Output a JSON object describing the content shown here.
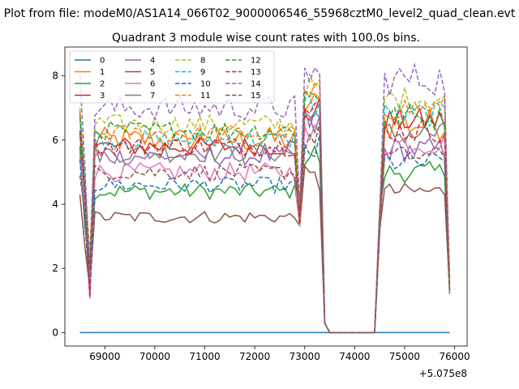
{
  "suptitle": "Plot from file: modeM0/AS1A14_066T02_9000006546_55968cztM0_level2_quad_clean.evt",
  "chart_data": {
    "type": "line",
    "title": "Quadrant 3 module wise count rates with 100.0s bins.",
    "xlabel": "",
    "ylabel": "",
    "x_offset_label": "+5.075e8",
    "xlim": [
      68200,
      76250
    ],
    "ylim": [
      -0.42,
      8.9
    ],
    "xticks": [
      69000,
      70000,
      71000,
      72000,
      73000,
      74000,
      75000,
      76000
    ],
    "yticks": [
      0,
      2,
      4,
      6,
      8
    ],
    "grid": false,
    "legend": {
      "position": "top-left",
      "ncol": 4
    },
    "segments": [
      {
        "x_start": 68500,
        "x_end": 73400
      },
      {
        "x_start": 73500,
        "x_end": 74400
      },
      {
        "x_start": 74500,
        "x_end": 75900
      }
    ],
    "series": [
      {
        "name": "0",
        "color": "#1f77b4",
        "style": "solid",
        "base": 0.0,
        "edge": 0.0,
        "amp": 0.0,
        "seg2": 0.0
      },
      {
        "name": "1",
        "color": "#ff7f0e",
        "style": "solid",
        "base": 6.0,
        "edge": 6.9,
        "amp": 0.4,
        "seg2": 6.5
      },
      {
        "name": "2",
        "color": "#2ca02c",
        "style": "solid",
        "base": 4.4,
        "edge": 5.8,
        "amp": 0.25,
        "seg2": 5.0
      },
      {
        "name": "3",
        "color": "#d62728",
        "style": "solid",
        "base": 5.8,
        "edge": 6.8,
        "amp": 0.3,
        "seg2": 6.6
      },
      {
        "name": "4",
        "color": "#9467bd",
        "style": "solid",
        "base": 5.5,
        "edge": 6.2,
        "amp": 0.3,
        "seg2": 5.7
      },
      {
        "name": "5",
        "color": "#8c564b",
        "style": "solid",
        "base": 3.6,
        "edge": 4.3,
        "amp": 0.2,
        "seg2": 4.4
      },
      {
        "name": "6",
        "color": "#e377c2",
        "style": "solid",
        "base": 5.0,
        "edge": 5.5,
        "amp": 0.3,
        "seg2": 5.9
      },
      {
        "name": "7",
        "color": "#7f7f7f",
        "style": "solid",
        "base": 5.6,
        "edge": 6.2,
        "amp": 0.3,
        "seg2": 6.2
      },
      {
        "name": "8",
        "color": "#bcbd22",
        "style": "dashed",
        "base": 6.5,
        "edge": 7.0,
        "amp": 0.3,
        "seg2": 7.3
      },
      {
        "name": "9",
        "color": "#17becf",
        "style": "dashed",
        "base": 6.0,
        "edge": 6.8,
        "amp": 0.3,
        "seg2": 6.8
      },
      {
        "name": "10",
        "color": "#1f77b4",
        "style": "dashed",
        "base": 4.6,
        "edge": 5.4,
        "amp": 0.25,
        "seg2": 5.3
      },
      {
        "name": "11",
        "color": "#ff7f0e",
        "style": "dashed",
        "base": 6.2,
        "edge": 6.9,
        "amp": 0.3,
        "seg2": 7.0
      },
      {
        "name": "12",
        "color": "#2ca02c",
        "style": "dashed",
        "base": 6.3,
        "edge": 6.7,
        "amp": 0.3,
        "seg2": 6.7
      },
      {
        "name": "13",
        "color": "#d62728",
        "style": "dashed",
        "base": 5.8,
        "edge": 6.3,
        "amp": 0.3,
        "seg2": 6.3
      },
      {
        "name": "14",
        "color": "#9467bd",
        "style": "dashed",
        "base": 7.0,
        "edge": 8.0,
        "amp": 0.4,
        "seg2": 7.9
      },
      {
        "name": "15",
        "color": "#8c564b",
        "style": "dashed",
        "base": 5.0,
        "edge": 4.9,
        "amp": 0.25,
        "seg2": 5.5
      }
    ]
  }
}
